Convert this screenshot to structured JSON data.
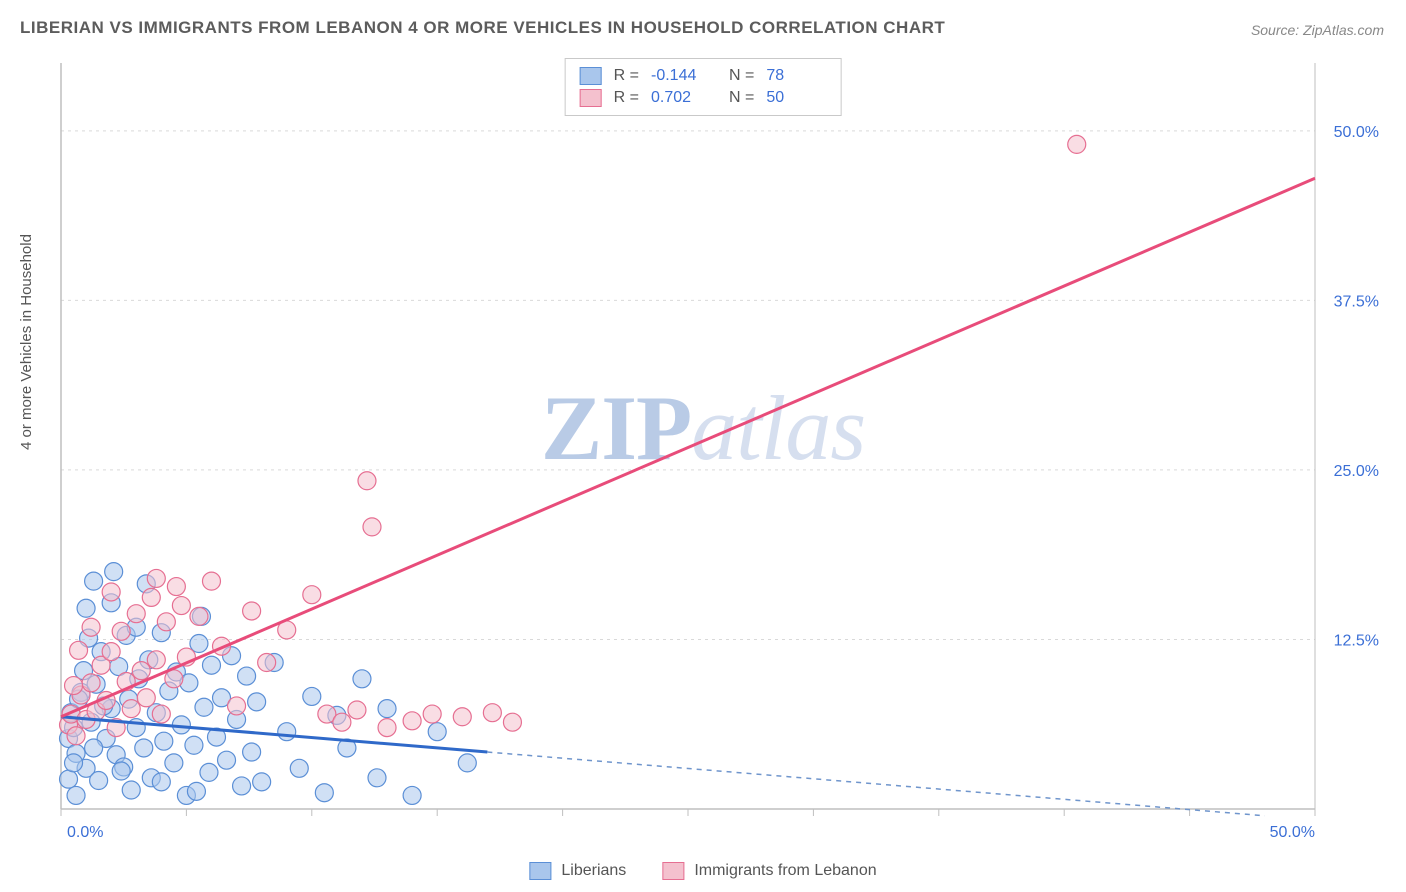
{
  "title": "LIBERIAN VS IMMIGRANTS FROM LEBANON 4 OR MORE VEHICLES IN HOUSEHOLD CORRELATION CHART",
  "source": "Source: ZipAtlas.com",
  "ylabel": "4 or more Vehicles in Household",
  "watermark": {
    "zip": "ZIP",
    "atlas": "atlas"
  },
  "chart": {
    "type": "scatter",
    "xlim": [
      0,
      50
    ],
    "ylim": [
      0,
      55
    ],
    "x_ticks": [
      {
        "v": 0,
        "label": "0.0%"
      },
      {
        "v": 50,
        "label": "50.0%"
      }
    ],
    "y_ticks": [
      {
        "v": 12.5,
        "label": "12.5%"
      },
      {
        "v": 25,
        "label": "25.0%"
      },
      {
        "v": 37.5,
        "label": "37.5%"
      },
      {
        "v": 50,
        "label": "50.0%"
      }
    ],
    "grid_color": "#d9d9d9",
    "axis_color": "#bfbfbf",
    "background_color": "#ffffff",
    "marker_radius": 9,
    "marker_opacity": 0.55,
    "series": [
      {
        "key": "liberians",
        "label": "Liberians",
        "fill": "#a9c6ec",
        "stroke": "#5b8fd6",
        "R": "-0.144",
        "N": "78",
        "trend": {
          "x1": 0,
          "y1": 6.8,
          "x2": 17,
          "y2": 4.2,
          "color": "#2f69c9",
          "width": 3,
          "dash": "none"
        },
        "trend_ext": {
          "x1": 17,
          "y1": 4.2,
          "x2": 48,
          "y2": -0.5,
          "color": "#6f95cc",
          "width": 1.5,
          "dash": "5,5"
        },
        "points": [
          [
            0.3,
            5.2
          ],
          [
            0.5,
            6.0
          ],
          [
            0.4,
            7.1
          ],
          [
            0.6,
            4.1
          ],
          [
            0.8,
            8.6
          ],
          [
            1.0,
            3.0
          ],
          [
            1.2,
            6.4
          ],
          [
            1.4,
            9.2
          ],
          [
            1.5,
            2.1
          ],
          [
            1.6,
            11.6
          ],
          [
            1.8,
            5.2
          ],
          [
            2.0,
            7.4
          ],
          [
            2.2,
            4.0
          ],
          [
            2.3,
            10.5
          ],
          [
            2.5,
            3.1
          ],
          [
            2.6,
            12.8
          ],
          [
            2.7,
            8.1
          ],
          [
            2.8,
            1.4
          ],
          [
            3.0,
            6.0
          ],
          [
            3.1,
            9.6
          ],
          [
            3.3,
            4.5
          ],
          [
            3.5,
            11.0
          ],
          [
            3.6,
            2.3
          ],
          [
            3.8,
            7.1
          ],
          [
            4.0,
            13.0
          ],
          [
            4.1,
            5.0
          ],
          [
            4.3,
            8.7
          ],
          [
            4.5,
            3.4
          ],
          [
            4.6,
            10.1
          ],
          [
            4.8,
            6.2
          ],
          [
            5.0,
            1.0
          ],
          [
            5.1,
            9.3
          ],
          [
            5.3,
            4.7
          ],
          [
            5.5,
            12.2
          ],
          [
            5.7,
            7.5
          ],
          [
            5.9,
            2.7
          ],
          [
            6.0,
            10.6
          ],
          [
            6.2,
            5.3
          ],
          [
            6.4,
            8.2
          ],
          [
            6.6,
            3.6
          ],
          [
            6.8,
            11.3
          ],
          [
            7.0,
            6.6
          ],
          [
            7.2,
            1.7
          ],
          [
            7.4,
            9.8
          ],
          [
            7.6,
            4.2
          ],
          [
            7.8,
            7.9
          ],
          [
            8.0,
            2.0
          ],
          [
            8.5,
            10.8
          ],
          [
            9.0,
            5.7
          ],
          [
            9.5,
            3.0
          ],
          [
            10.0,
            8.3
          ],
          [
            10.5,
            1.2
          ],
          [
            11.0,
            6.9
          ],
          [
            11.4,
            4.5
          ],
          [
            12.0,
            9.6
          ],
          [
            12.6,
            2.3
          ],
          [
            13.0,
            7.4
          ],
          [
            14.0,
            1.0
          ],
          [
            15.0,
            5.7
          ],
          [
            16.2,
            3.4
          ],
          [
            1.0,
            14.8
          ],
          [
            2.0,
            15.2
          ],
          [
            3.4,
            16.6
          ],
          [
            5.6,
            14.2
          ],
          [
            1.3,
            16.8
          ],
          [
            2.1,
            17.5
          ],
          [
            0.3,
            2.2
          ],
          [
            0.5,
            3.4
          ],
          [
            0.6,
            1.0
          ],
          [
            0.7,
            8.1
          ],
          [
            0.9,
            10.2
          ],
          [
            1.1,
            12.6
          ],
          [
            1.3,
            4.5
          ],
          [
            1.7,
            7.6
          ],
          [
            2.4,
            2.8
          ],
          [
            3.0,
            13.4
          ],
          [
            4.0,
            2.0
          ],
          [
            5.4,
            1.3
          ]
        ]
      },
      {
        "key": "lebanon",
        "label": "Immigrants from Lebanon",
        "fill": "#f4c1ce",
        "stroke": "#e66f92",
        "R": "0.702",
        "N": "50",
        "trend": {
          "x1": 0,
          "y1": 6.8,
          "x2": 50,
          "y2": 46.5,
          "color": "#e84c7a",
          "width": 3,
          "dash": "none"
        },
        "points": [
          [
            0.3,
            6.2
          ],
          [
            0.4,
            7.0
          ],
          [
            0.6,
            5.4
          ],
          [
            0.8,
            8.4
          ],
          [
            1.0,
            6.6
          ],
          [
            1.2,
            9.3
          ],
          [
            1.4,
            7.2
          ],
          [
            1.6,
            10.6
          ],
          [
            1.8,
            8.0
          ],
          [
            2.0,
            11.6
          ],
          [
            2.2,
            6.0
          ],
          [
            2.4,
            13.1
          ],
          [
            2.6,
            9.4
          ],
          [
            2.8,
            7.4
          ],
          [
            3.0,
            14.4
          ],
          [
            3.2,
            10.2
          ],
          [
            3.4,
            8.2
          ],
          [
            3.6,
            15.6
          ],
          [
            3.8,
            11.0
          ],
          [
            4.0,
            7.0
          ],
          [
            4.2,
            13.8
          ],
          [
            4.5,
            9.6
          ],
          [
            4.8,
            15.0
          ],
          [
            5.0,
            11.2
          ],
          [
            5.5,
            14.2
          ],
          [
            6.0,
            16.8
          ],
          [
            6.4,
            12.0
          ],
          [
            7.0,
            7.6
          ],
          [
            7.6,
            14.6
          ],
          [
            8.2,
            10.8
          ],
          [
            9.0,
            13.2
          ],
          [
            10.0,
            15.8
          ],
          [
            10.6,
            7.0
          ],
          [
            11.2,
            6.4
          ],
          [
            11.8,
            7.3
          ],
          [
            12.4,
            20.8
          ],
          [
            13.0,
            6.0
          ],
          [
            14.0,
            6.5
          ],
          [
            14.8,
            7.0
          ],
          [
            16.0,
            6.8
          ],
          [
            17.2,
            7.1
          ],
          [
            18.0,
            6.4
          ],
          [
            12.2,
            24.2
          ],
          [
            4.6,
            16.4
          ],
          [
            3.8,
            17.0
          ],
          [
            2.0,
            16.0
          ],
          [
            1.2,
            13.4
          ],
          [
            0.7,
            11.7
          ],
          [
            0.5,
            9.1
          ],
          [
            40.5,
            49.0
          ]
        ]
      }
    ]
  },
  "legend_bottom": [
    {
      "label": "Liberians",
      "fill": "#a9c6ec",
      "stroke": "#5b8fd6"
    },
    {
      "label": "Immigrants from Lebanon",
      "fill": "#f4c1ce",
      "stroke": "#e66f92"
    }
  ]
}
